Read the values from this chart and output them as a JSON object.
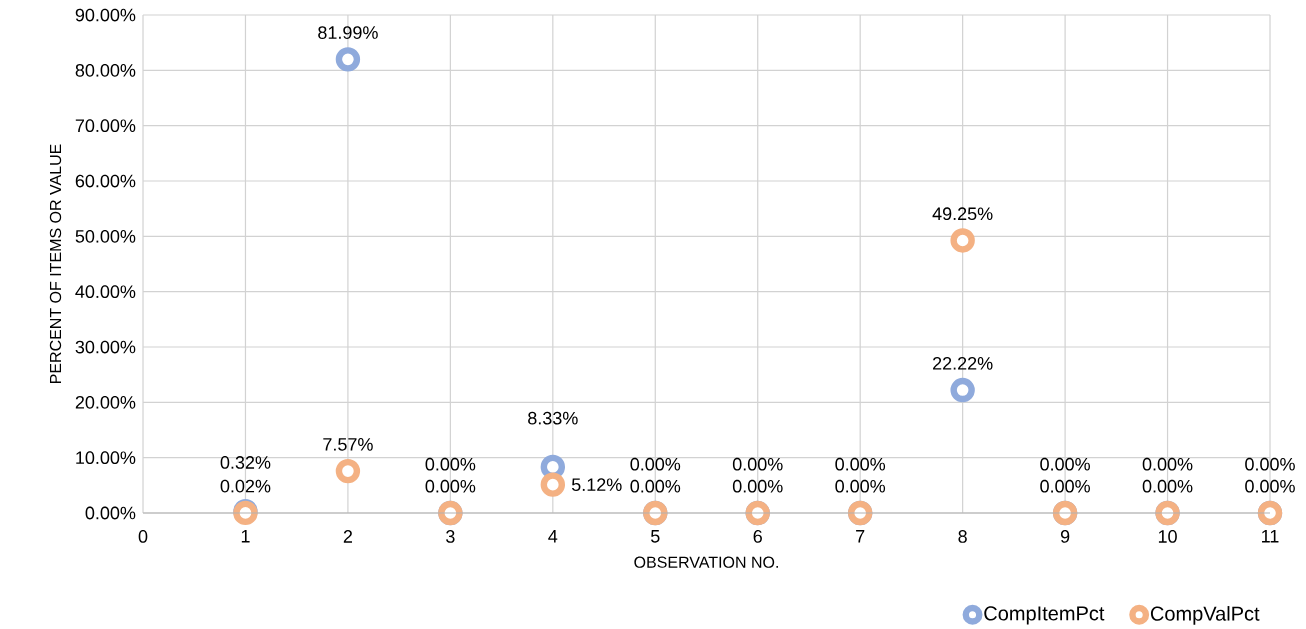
{
  "chart_data": {
    "type": "scatter",
    "xlabel": "OBSERVATION NO.",
    "ylabel": "PERCENT OF ITEMS OR VALUE",
    "xlim": [
      0,
      11
    ],
    "xticks": [
      0,
      1,
      2,
      3,
      4,
      5,
      6,
      7,
      8,
      9,
      10,
      11
    ],
    "ylim": [
      0,
      90
    ],
    "yticks": [
      {
        "value": 0,
        "label": "0.00%"
      },
      {
        "value": 10,
        "label": "10.00%"
      },
      {
        "value": 20,
        "label": "20.00%"
      },
      {
        "value": 30,
        "label": "30.00%"
      },
      {
        "value": 40,
        "label": "40.00%"
      },
      {
        "value": 50,
        "label": "50.00%"
      },
      {
        "value": 60,
        "label": "60.00%"
      },
      {
        "value": 70,
        "label": "70.00%"
      },
      {
        "value": 80,
        "label": "80.00%"
      },
      {
        "value": 90,
        "label": "90.00%"
      }
    ],
    "grid": true,
    "legend": "bottom right",
    "marker": "circle",
    "x": [
      1,
      2,
      3,
      4,
      5,
      6,
      7,
      8,
      9,
      10,
      11
    ],
    "series": [
      {
        "name": "CompItemPct",
        "color": "#8faadc",
        "values": [
          0.32,
          81.99,
          0,
          8.33,
          0,
          0,
          0,
          22.22,
          0,
          0,
          0
        ],
        "value_labels": [
          "0.32%",
          "81.99%",
          "0.00%",
          "8.33%",
          "0.00%",
          "0.00%",
          "0.00%",
          "22.22%",
          "0.00%",
          "0.00%",
          "0.00%"
        ]
      },
      {
        "name": "CompValPct",
        "color": "#f4b183",
        "values": [
          0.02,
          7.57,
          0,
          5.12,
          0,
          0,
          0,
          49.25,
          0,
          0,
          0
        ],
        "value_labels": [
          "0.02%",
          "7.57%",
          "0.00%",
          "5.12%",
          "0.00%",
          "0.00%",
          "0.00%",
          "49.25%",
          "0.00%",
          "0.00%",
          "0.00%"
        ]
      }
    ]
  }
}
